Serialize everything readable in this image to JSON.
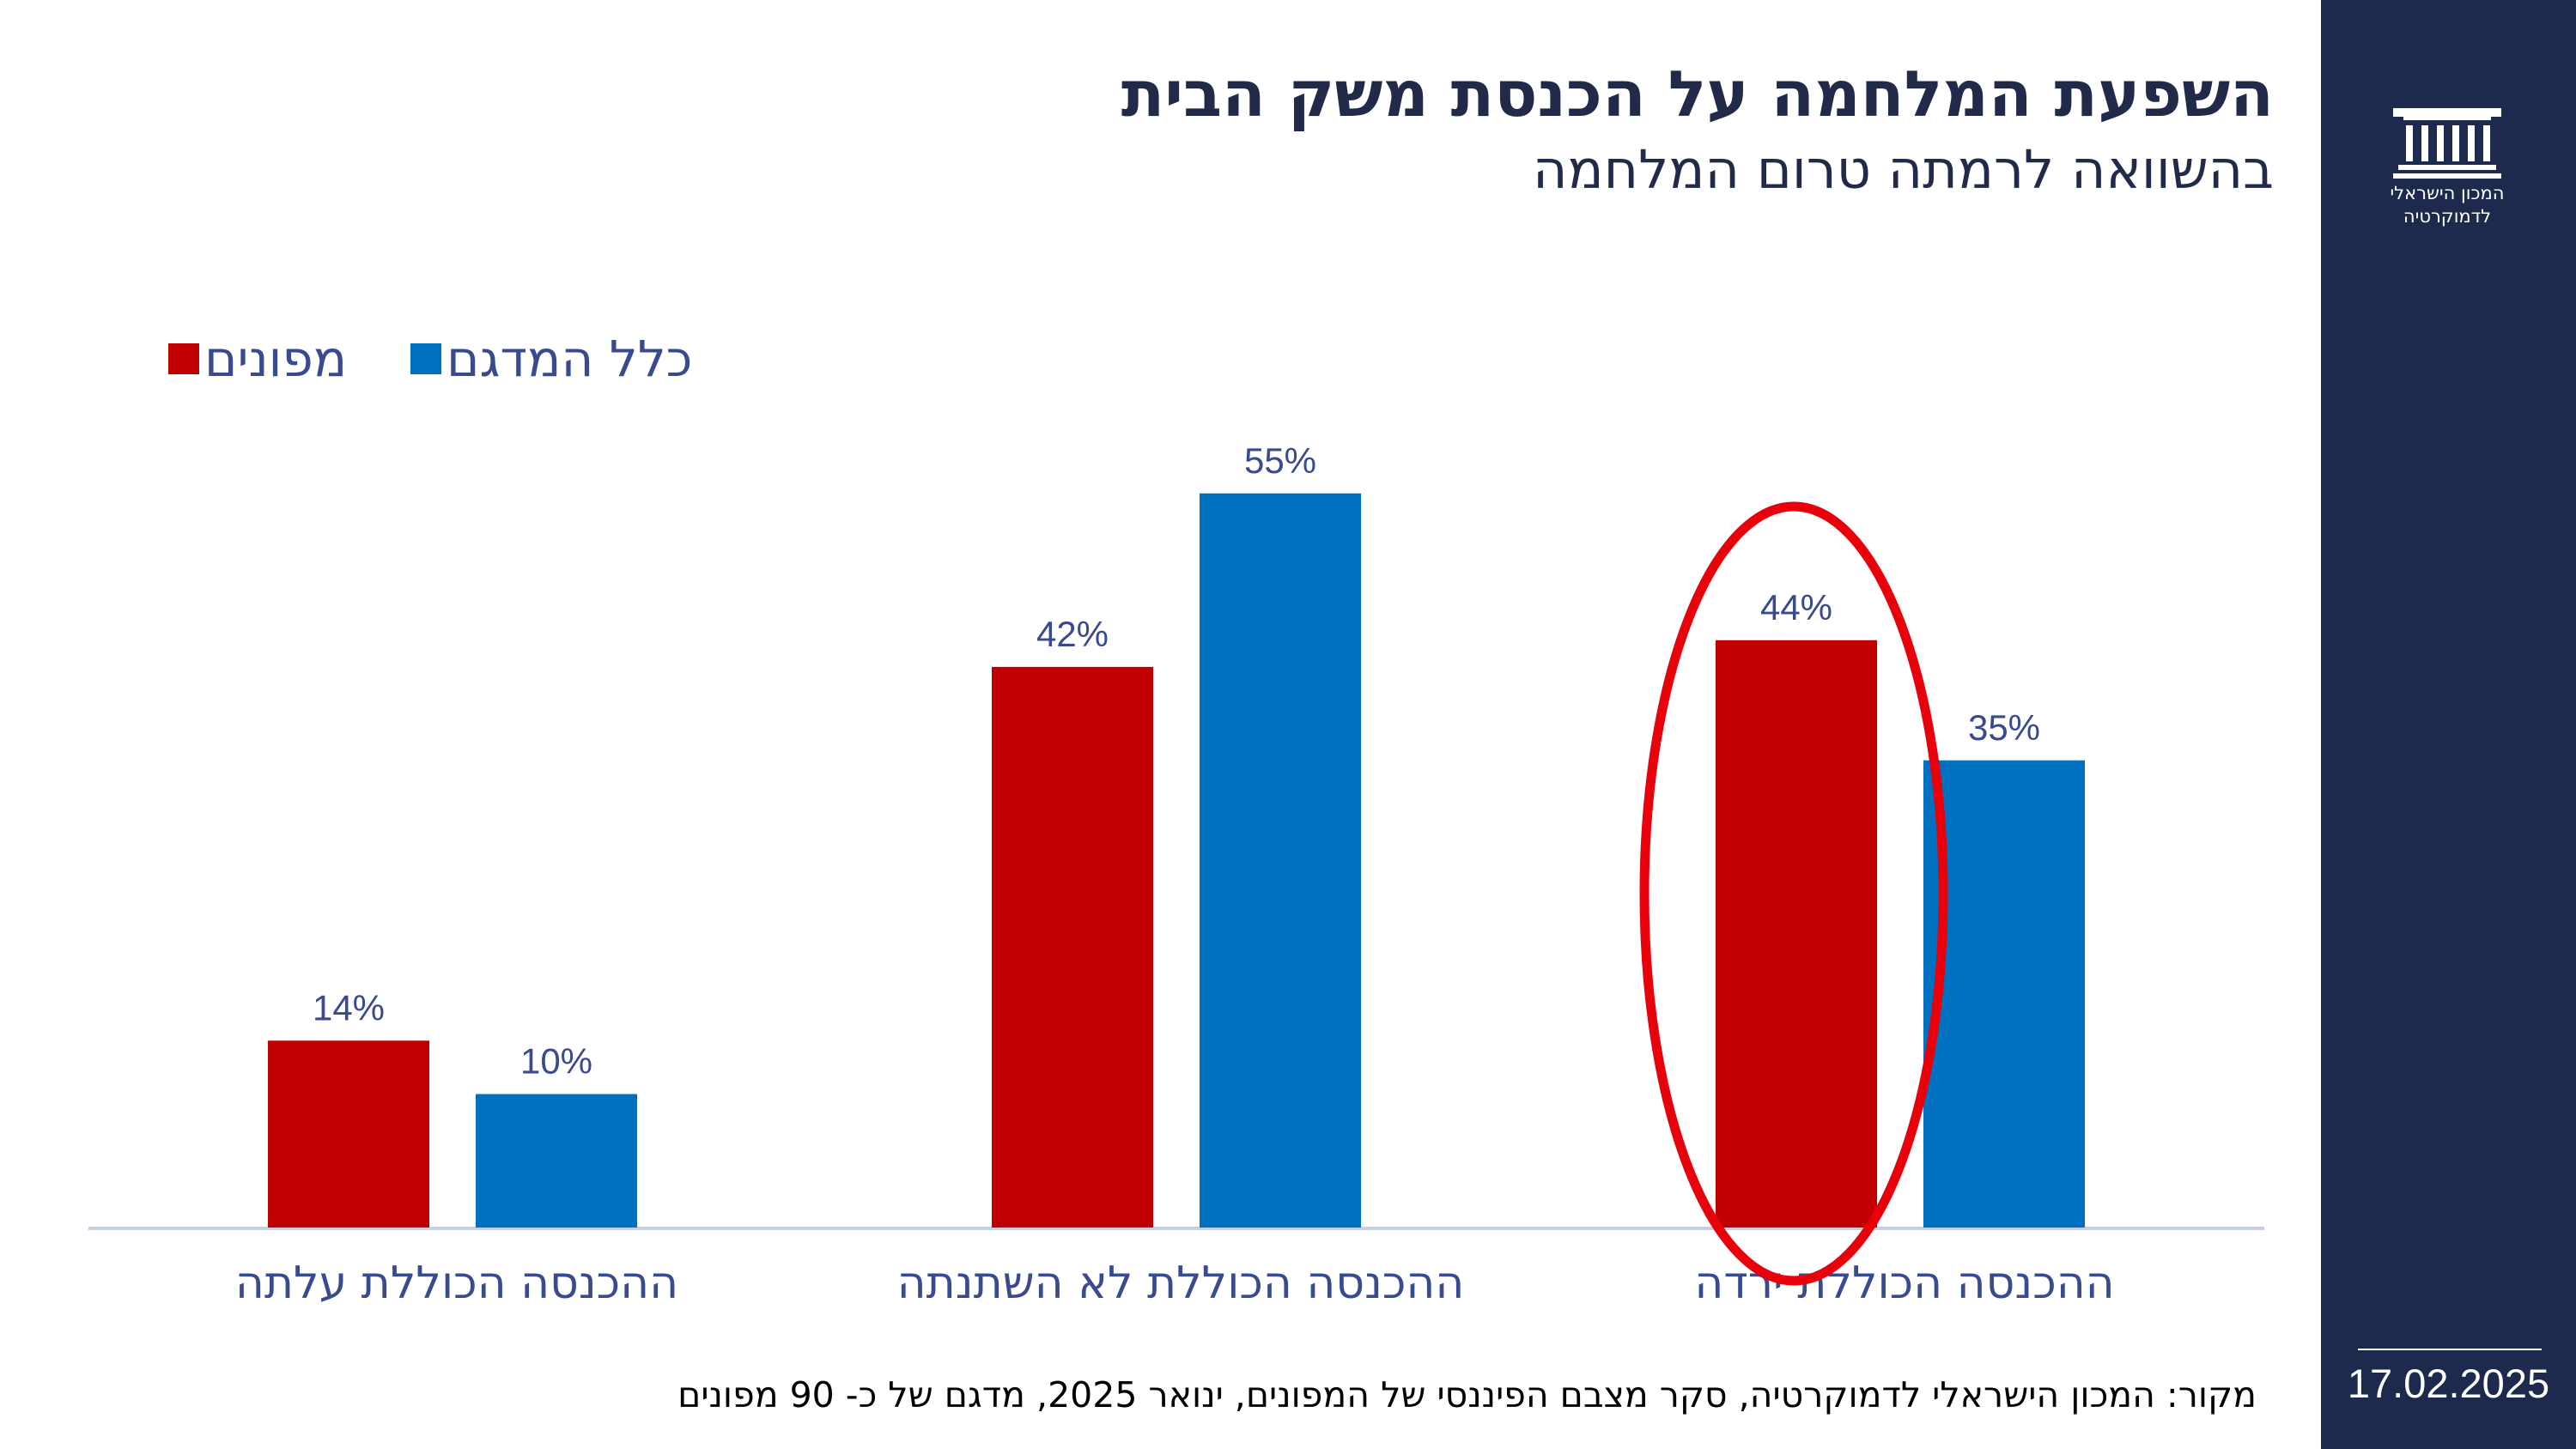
{
  "header": {
    "title": "השפעת המלחמה על הכנסת משק הבית",
    "subtitle": "בהשוואה לרמתה טרום המלחמה"
  },
  "sidebar": {
    "logo_icon": "building-columns-icon",
    "logo_text_line1": "המכון הישראלי",
    "logo_text_line2": "לדמוקרטיה",
    "date": "17.02.2025"
  },
  "legend": {
    "evacuees_label": "מפונים",
    "total_label": "כלל המדגם"
  },
  "chart_data": {
    "type": "bar",
    "title": "השפעת המלחמה על הכנסת משק הבית",
    "subtitle": "בהשוואה לרמתה טרום המלחמה",
    "direction": "rtl",
    "categories": [
      "ההכנסה הכוללת ירדה",
      "ההכנסה הכוללת לא השתנתה",
      "ההכנסה הכוללת עלתה"
    ],
    "series": [
      {
        "name": "מפונים",
        "color": "#c00000",
        "values": [
          44,
          42,
          14
        ],
        "labels": [
          "44%",
          "42%",
          "14%"
        ]
      },
      {
        "name": "כלל המדגם",
        "color": "#0070c0",
        "values": [
          35,
          55,
          10
        ],
        "labels": [
          "35%",
          "55%",
          "10%"
        ]
      }
    ],
    "ylim": [
      0,
      60
    ],
    "value_unit": "%",
    "grid": false,
    "legend_position": "top-left",
    "highlight": {
      "category": "ההכנסה הכוללת ירדה",
      "series": "מפונים",
      "shape": "ellipse",
      "color": "#e8000b"
    },
    "label_color": "#3a4a8f",
    "axis_color": "#c8d0e0"
  },
  "footer": {
    "source_text": "מקור: המכון הישראלי לדמוקרטיה,  סקר מצבם הפיננסי של המפונים, ינואר 2025, מדגם של כ- 90 מפונים"
  }
}
